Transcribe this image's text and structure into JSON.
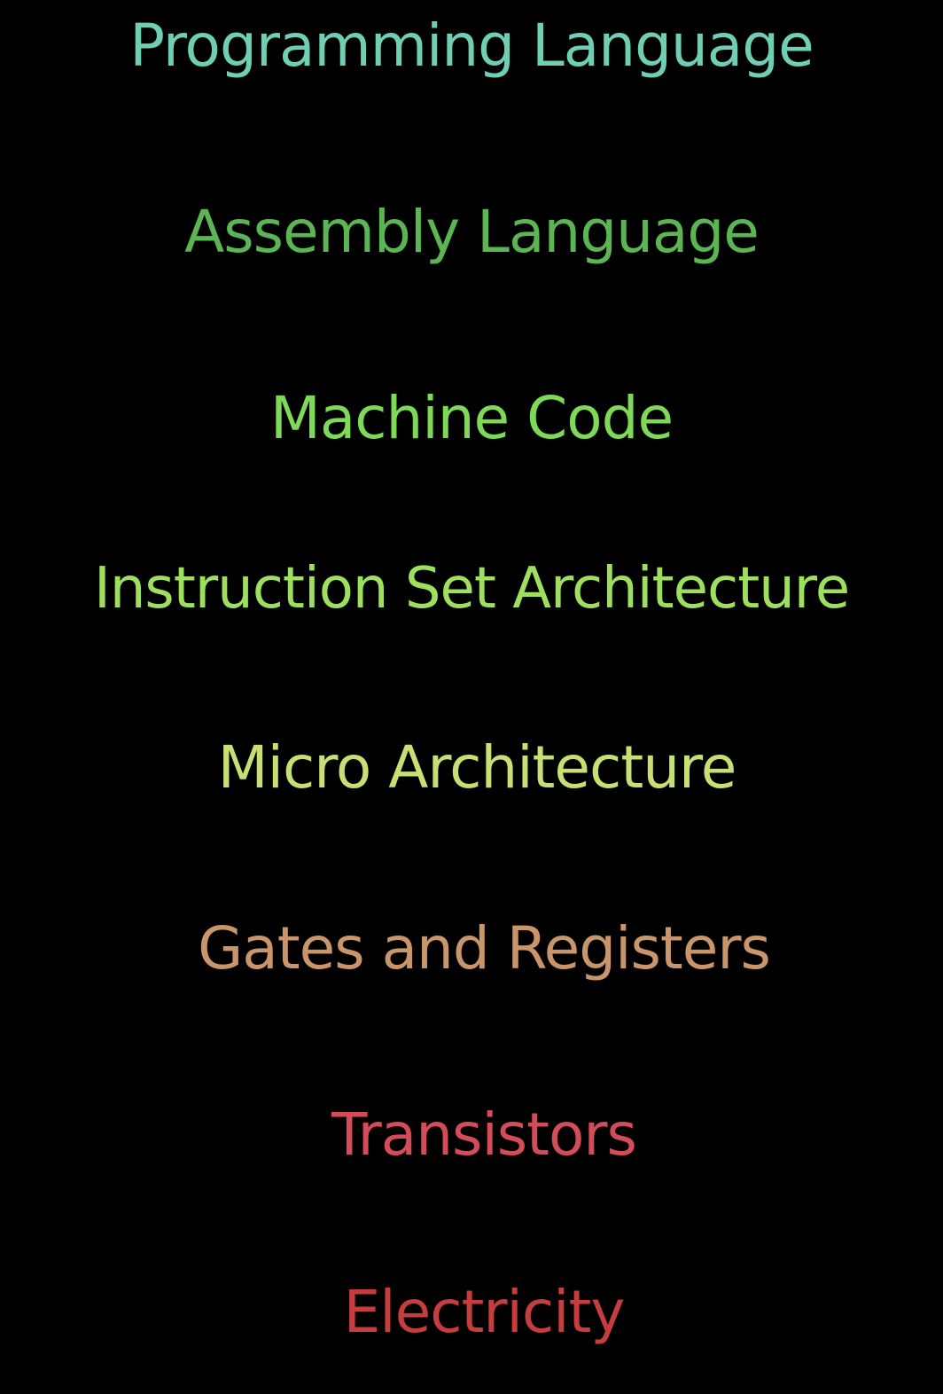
{
  "layers": [
    {
      "label": "Programming Language",
      "color": "#6ecfb5"
    },
    {
      "label": "Assembly Language",
      "color": "#5ab552"
    },
    {
      "label": "Machine Code",
      "color": "#7ed957"
    },
    {
      "label": "Instruction Set Architecture",
      "color": "#9ee05e"
    },
    {
      "label": "Micro Architecture",
      "color": "#c8df74"
    },
    {
      "label": "Gates and Registers",
      "color": "#c9956a"
    },
    {
      "label": "Transistors",
      "color": "#d24d57"
    },
    {
      "label": "Electricity",
      "color": "#c53d3d"
    }
  ]
}
